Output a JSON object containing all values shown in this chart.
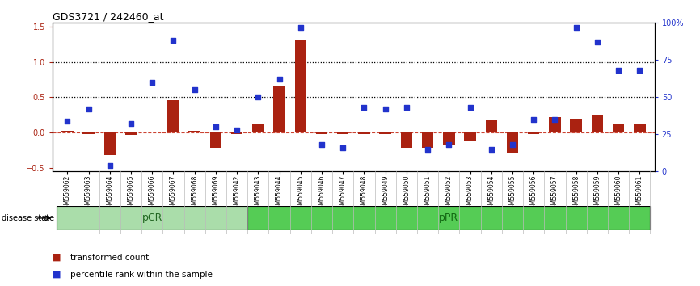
{
  "title": "GDS3721 / 242460_at",
  "samples": [
    "GSM559062",
    "GSM559063",
    "GSM559064",
    "GSM559065",
    "GSM559066",
    "GSM559067",
    "GSM559068",
    "GSM559069",
    "GSM559042",
    "GSM559043",
    "GSM559044",
    "GSM559045",
    "GSM559046",
    "GSM559047",
    "GSM559048",
    "GSM559049",
    "GSM559050",
    "GSM559051",
    "GSM559052",
    "GSM559053",
    "GSM559054",
    "GSM559055",
    "GSM559056",
    "GSM559057",
    "GSM559058",
    "GSM559059",
    "GSM559060",
    "GSM559061"
  ],
  "transformed_count": [
    0.02,
    -0.02,
    -0.32,
    -0.03,
    0.01,
    0.46,
    0.02,
    -0.22,
    -0.02,
    0.12,
    0.66,
    1.3,
    -0.02,
    -0.02,
    -0.02,
    -0.02,
    -0.22,
    -0.22,
    -0.18,
    -0.12,
    0.18,
    -0.28,
    -0.02,
    0.22,
    0.2,
    0.25,
    0.12,
    0.12
  ],
  "percentile_rank_pct": [
    34,
    42,
    4,
    32,
    60,
    88,
    55,
    30,
    28,
    50,
    62,
    97,
    18,
    16,
    43,
    42,
    43,
    15,
    18,
    43,
    15,
    18,
    35,
    35,
    97,
    87,
    68,
    68
  ],
  "pCR_count": 9,
  "pPR_count": 19,
  "bar_color": "#aa2211",
  "dot_color": "#2233cc",
  "pCR_color": "#aaddaa",
  "pPR_color": "#55cc55",
  "zero_line_color": "#cc4433",
  "ylim_left": [
    -0.55,
    1.55
  ],
  "yticks_left": [
    -0.5,
    0.0,
    0.5,
    1.0,
    1.5
  ],
  "yticks_right_pct": [
    0,
    25,
    50,
    75,
    100
  ],
  "hlines": [
    0.5,
    1.0
  ],
  "background_color": "#ffffff",
  "plot_bg": "#ffffff"
}
